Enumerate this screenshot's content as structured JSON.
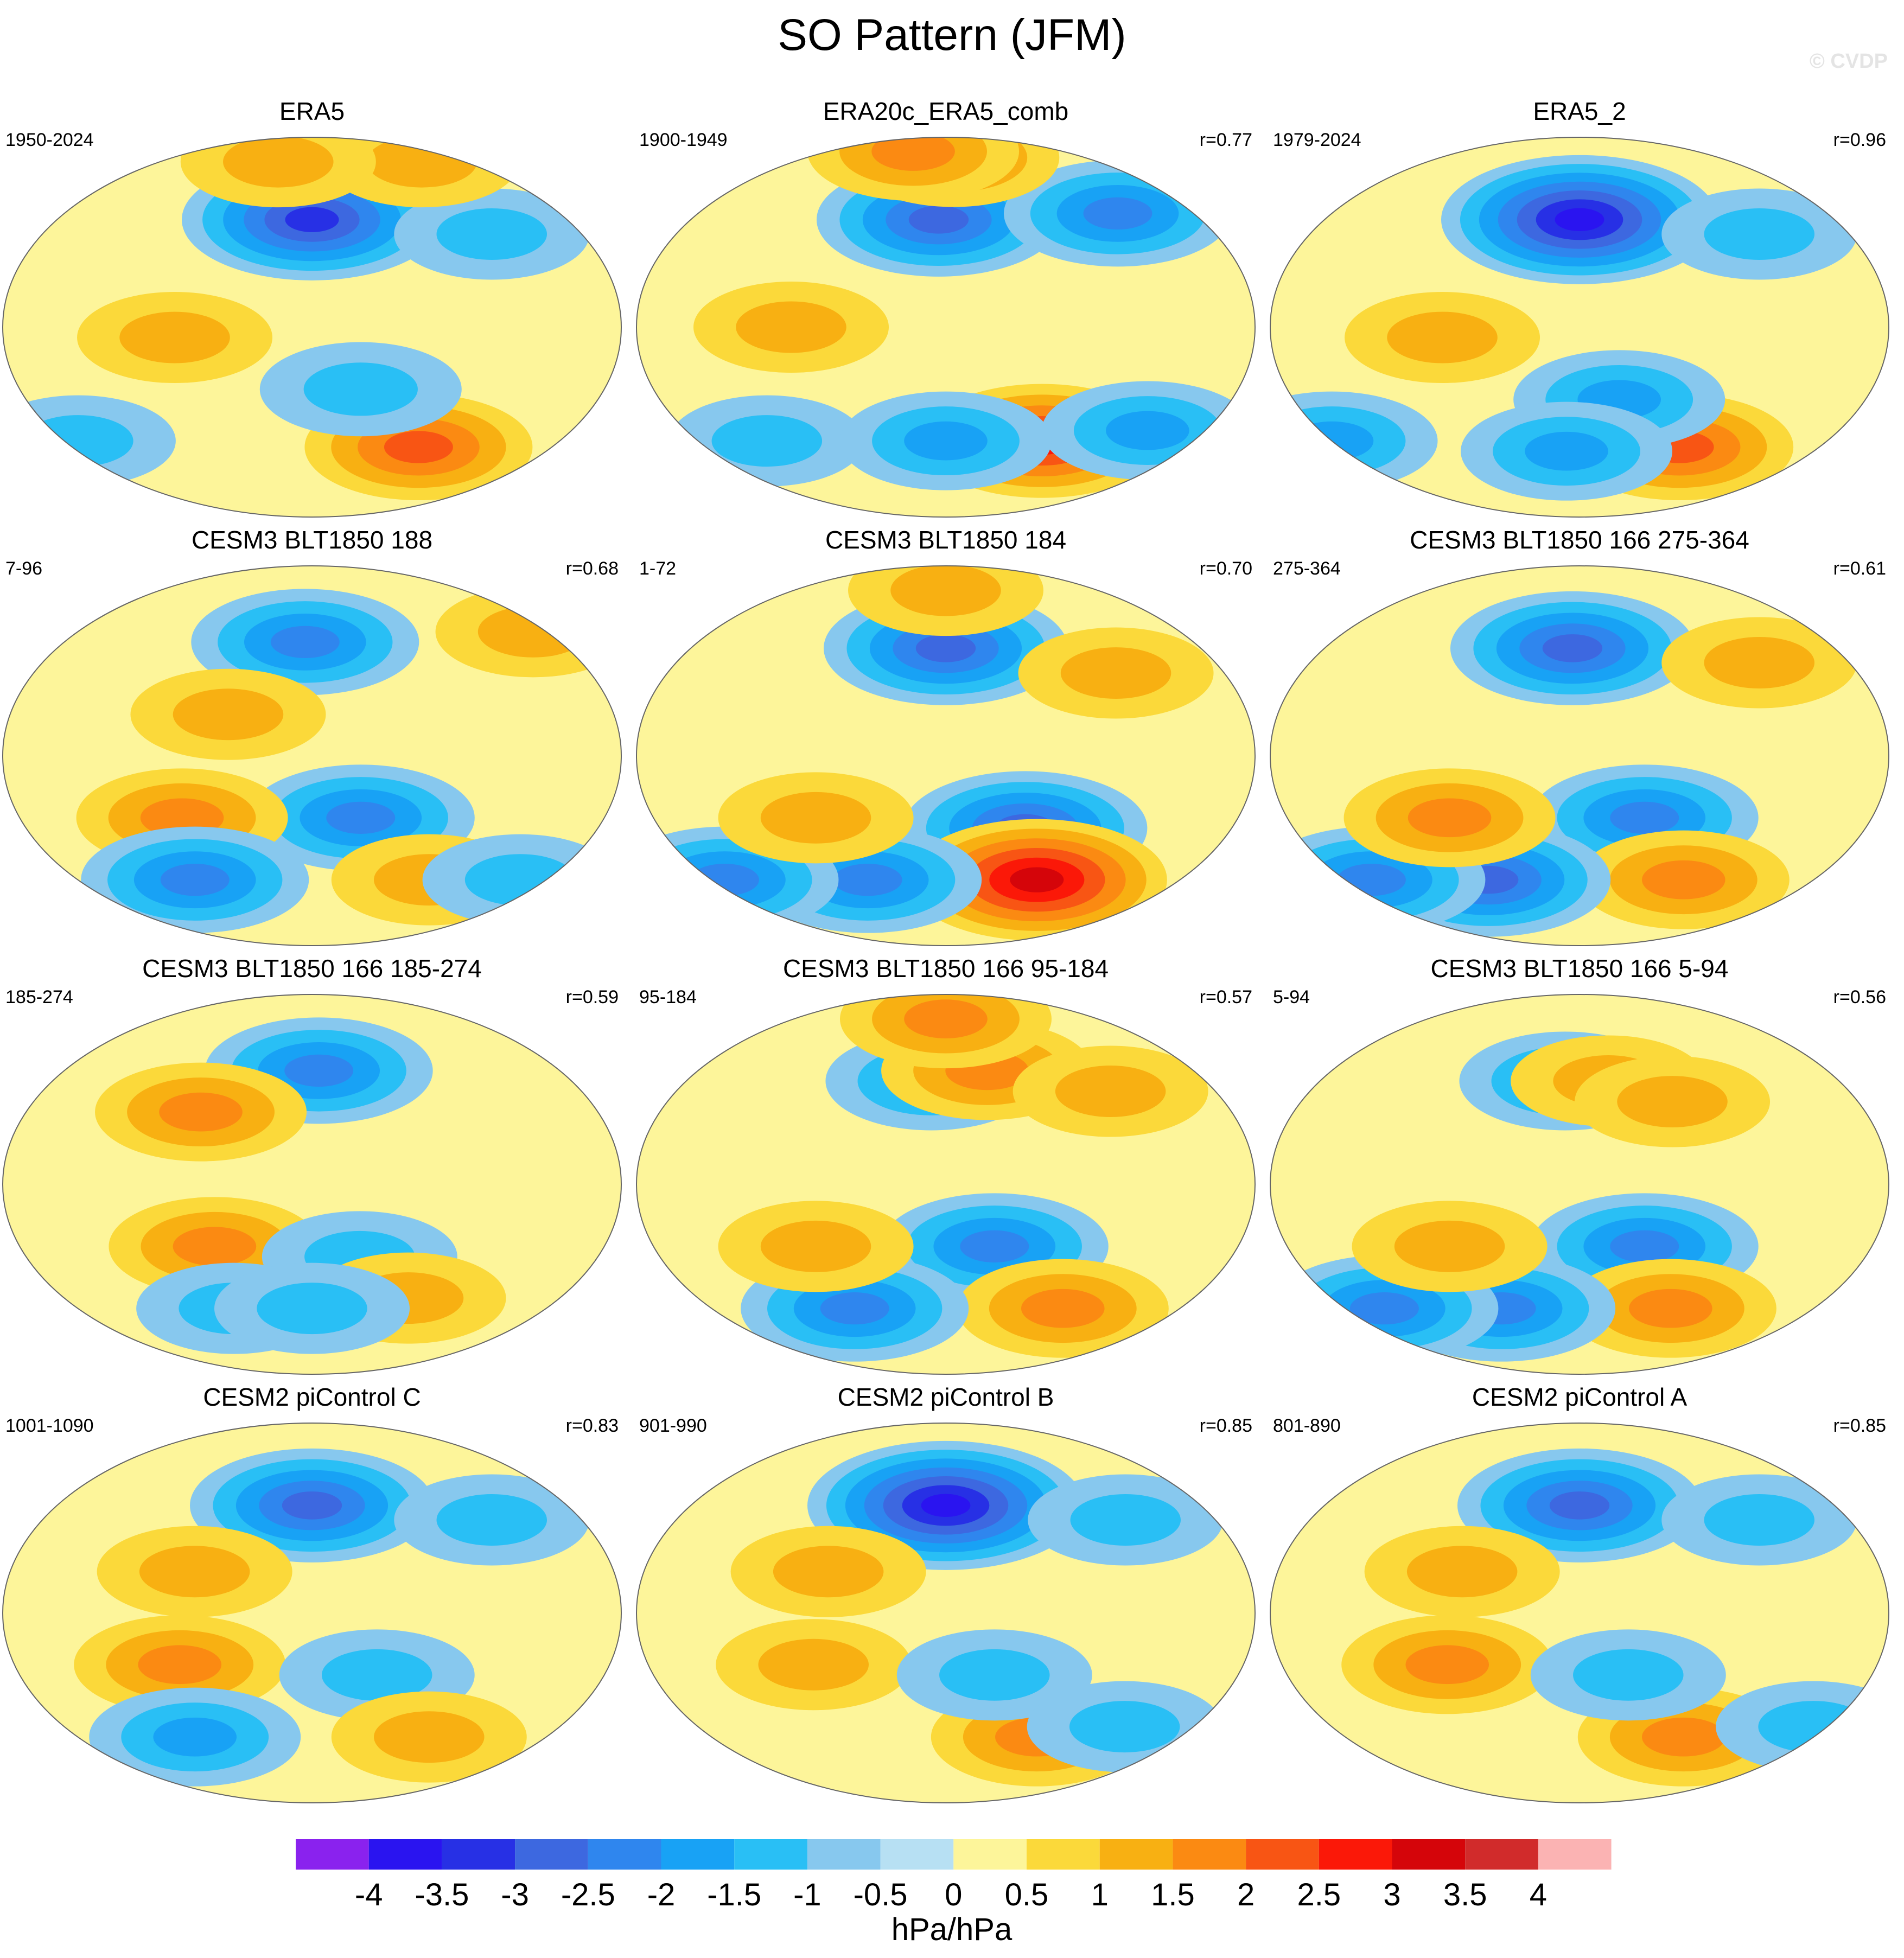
{
  "figure": {
    "title": "SO Pattern (JFM)",
    "watermark": "© CVDP",
    "colorbar": {
      "units": "hPa/hPa",
      "labels": [
        "-4",
        "-3.5",
        "-3",
        "-2.5",
        "-2",
        "-1.5",
        "-1",
        "-0.5",
        "0",
        "0.5",
        "1",
        "1.5",
        "2",
        "2.5",
        "3",
        "3.5",
        "4"
      ],
      "levels": [
        -4,
        -3.5,
        -3,
        -2.5,
        -2,
        -1.5,
        -1,
        -0.5,
        0,
        0.5,
        1,
        1.5,
        2,
        2.5,
        3,
        3.5,
        4
      ],
      "colors": [
        "#8a22ee",
        "#2a14f0",
        "#2730e5",
        "#3d68e0",
        "#2f86ee",
        "#18a2f5",
        "#29bff5",
        "#87c8ee",
        "#b7e0f3",
        "#fdf59a",
        "#fbd93a",
        "#f8b012",
        "#fb8a12",
        "#f85514",
        "#fb1808",
        "#d5050a",
        "#d12b2b",
        "#fbb3b3"
      ]
    }
  },
  "chart_data": [
    {
      "type": "map",
      "panel": "ERA5",
      "period": "1950-2024",
      "r": "",
      "features": [
        {
          "lon": -150,
          "lat": 52,
          "value": -3.0
        },
        {
          "lon": -70,
          "lat": -58,
          "value": 2.0
        },
        {
          "lon": 130,
          "lat": -5,
          "value": 1.0
        },
        {
          "lon": -120,
          "lat": -30,
          "value": -1.2
        },
        {
          "lon": -30,
          "lat": 45,
          "value": -1.0
        },
        {
          "lon": 40,
          "lat": -55,
          "value": -1.0
        },
        {
          "lon": -20,
          "lat": 80,
          "value": 1.0
        },
        {
          "lon": 170,
          "lat": 80,
          "value": 1.0
        }
      ]
    },
    {
      "type": "map",
      "panel": "ERA20c_ERA5_comb",
      "period": "1900-1949",
      "r": "r=0.77",
      "features": [
        {
          "lon": -155,
          "lat": 52,
          "value": -2.5
        },
        {
          "lon": -80,
          "lat": -55,
          "value": 2.5
        },
        {
          "lon": 120,
          "lat": 0,
          "value": 1.0
        },
        {
          "lon": -25,
          "lat": 55,
          "value": -2.0
        },
        {
          "lon": -10,
          "lat": -50,
          "value": -1.5
        },
        {
          "lon": 80,
          "lat": -55,
          "value": -1.0
        },
        {
          "lon": -150,
          "lat": -55,
          "value": -1.5
        },
        {
          "lon": -140,
          "lat": 82,
          "value": 1.5
        },
        {
          "lon": 160,
          "lat": 85,
          "value": 1.5
        }
      ]
    },
    {
      "type": "map",
      "panel": "ERA5_2",
      "period": "1979-2024",
      "r": "r=0.96",
      "features": [
        {
          "lon": -150,
          "lat": 52,
          "value": -3.5
        },
        {
          "lon": -75,
          "lat": -58,
          "value": 2.0
        },
        {
          "lon": 130,
          "lat": -5,
          "value": 1.0
        },
        {
          "lon": -125,
          "lat": -35,
          "value": -1.5
        },
        {
          "lon": -30,
          "lat": 45,
          "value": -1.0
        },
        {
          "lon": 30,
          "lat": -55,
          "value": -1.5
        },
        {
          "lon": -160,
          "lat": -60,
          "value": -1.5
        }
      ]
    },
    {
      "type": "map",
      "panel": "CESM3 BLT1850 188",
      "period": "7-96",
      "r": "r=0.68",
      "features": [
        {
          "lon": -155,
          "lat": 55,
          "value": -2.0
        },
        {
          "lon": -120,
          "lat": -30,
          "value": -2.0
        },
        {
          "lon": 130,
          "lat": -30,
          "value": 1.5
        },
        {
          "lon": 120,
          "lat": -60,
          "value": -2.0
        },
        {
          "lon": -60,
          "lat": -60,
          "value": 1.0
        },
        {
          "lon": 10,
          "lat": -60,
          "value": -1.0
        },
        {
          "lon": 20,
          "lat": 60,
          "value": 1.0
        },
        {
          "lon": 160,
          "lat": 20,
          "value": 1.0
        }
      ]
    },
    {
      "type": "map",
      "panel": "CESM3 BLT1850 184",
      "period": "1-72",
      "r": "r=0.70",
      "features": [
        {
          "lon": -150,
          "lat": 52,
          "value": -2.5
        },
        {
          "lon": -100,
          "lat": -35,
          "value": -2.5
        },
        {
          "lon": -80,
          "lat": -60,
          "value": 3.0
        },
        {
          "lon": 150,
          "lat": -60,
          "value": -2.0
        },
        {
          "lon": 40,
          "lat": -60,
          "value": -2.0
        },
        {
          "lon": 130,
          "lat": -30,
          "value": 1.0
        },
        {
          "lon": -40,
          "lat": 40,
          "value": 1.0
        },
        {
          "lon": -150,
          "lat": 80,
          "value": 1.0
        }
      ]
    },
    {
      "type": "map",
      "panel": "CESM3 BLT1850 166 275-364",
      "period": "275-364",
      "r": "r=0.61",
      "features": [
        {
          "lon": -155,
          "lat": 52,
          "value": -2.5
        },
        {
          "lon": -110,
          "lat": -30,
          "value": -2.0
        },
        {
          "lon": -70,
          "lat": -60,
          "value": 1.5
        },
        {
          "lon": 140,
          "lat": -60,
          "value": -2.5
        },
        {
          "lon": 50,
          "lat": -60,
          "value": -2.0
        },
        {
          "lon": 130,
          "lat": -30,
          "value": 1.5
        },
        {
          "lon": -30,
          "lat": 45,
          "value": 1.0
        }
      ]
    },
    {
      "type": "map",
      "panel": "CESM3 BLT1850 166 185-274",
      "period": "185-274",
      "r": "r=0.59",
      "features": [
        {
          "lon": -145,
          "lat": 55,
          "value": -2.0
        },
        {
          "lon": 150,
          "lat": -30,
          "value": 1.5
        },
        {
          "lon": 140,
          "lat": 35,
          "value": 1.5
        },
        {
          "lon": -120,
          "lat": -35,
          "value": -1.0
        },
        {
          "lon": -80,
          "lat": -55,
          "value": 1.0
        },
        {
          "lon": 150,
          "lat": -60,
          "value": -1.0
        },
        {
          "lon": -150,
          "lat": -60,
          "value": -1.0
        }
      ]
    },
    {
      "type": "map",
      "panel": "CESM3 BLT1850 166 95-184",
      "period": "95-184",
      "r": "r=0.57",
      "features": [
        {
          "lon": -160,
          "lat": 50,
          "value": -1.5
        },
        {
          "lon": -120,
          "lat": 55,
          "value": 1.5
        },
        {
          "lon": -120,
          "lat": -30,
          "value": -2.0
        },
        {
          "lon": -60,
          "lat": -60,
          "value": 1.5
        },
        {
          "lon": 140,
          "lat": -60,
          "value": -2.0
        },
        {
          "lon": 130,
          "lat": -30,
          "value": 1.0
        },
        {
          "lon": -150,
          "lat": 80,
          "value": 1.5
        },
        {
          "lon": -40,
          "lat": 45,
          "value": 1.0
        }
      ]
    },
    {
      "type": "map",
      "panel": "CESM3 BLT1850 166 5-94",
      "period": "5-94",
      "r": "r=0.56",
      "features": [
        {
          "lon": -160,
          "lat": 50,
          "value": -1.5
        },
        {
          "lon": -130,
          "lat": 50,
          "value": 1.0
        },
        {
          "lon": -110,
          "lat": -30,
          "value": -2.0
        },
        {
          "lon": -80,
          "lat": -60,
          "value": 1.5
        },
        {
          "lon": 150,
          "lat": -60,
          "value": -2.0
        },
        {
          "lon": 60,
          "lat": -60,
          "value": -2.0
        },
        {
          "lon": 130,
          "lat": -30,
          "value": 1.0
        },
        {
          "lon": -90,
          "lat": 40,
          "value": 1.0
        }
      ]
    },
    {
      "type": "map",
      "panel": "CESM2 piControl C",
      "period": "1001-1090",
      "r": "r=0.83",
      "features": [
        {
          "lon": -150,
          "lat": 52,
          "value": -2.5
        },
        {
          "lon": 130,
          "lat": -25,
          "value": 1.5
        },
        {
          "lon": -110,
          "lat": -30,
          "value": -1.0
        },
        {
          "lon": -60,
          "lat": -60,
          "value": 1.0
        },
        {
          "lon": 120,
          "lat": -60,
          "value": -1.5
        },
        {
          "lon": -30,
          "lat": 45,
          "value": -1.0
        },
        {
          "lon": 140,
          "lat": 20,
          "value": 1.0
        }
      ]
    },
    {
      "type": "map",
      "panel": "CESM2 piControl B",
      "period": "901-990",
      "r": "r=0.85",
      "features": [
        {
          "lon": -150,
          "lat": 52,
          "value": -3.5
        },
        {
          "lon": -80,
          "lat": -60,
          "value": 1.5
        },
        {
          "lon": 130,
          "lat": -25,
          "value": 1.0
        },
        {
          "lon": -120,
          "lat": -30,
          "value": -1.0
        },
        {
          "lon": -30,
          "lat": 45,
          "value": -1.0
        },
        {
          "lon": 140,
          "lat": 20,
          "value": 1.0
        },
        {
          "lon": -20,
          "lat": -55,
          "value": -1.0
        }
      ]
    },
    {
      "type": "map",
      "panel": "CESM2 piControl A",
      "period": "801-890",
      "r": "r=0.85",
      "features": [
        {
          "lon": -150,
          "lat": 52,
          "value": -2.5
        },
        {
          "lon": -70,
          "lat": -60,
          "value": 1.5
        },
        {
          "lon": 130,
          "lat": -25,
          "value": 1.5
        },
        {
          "lon": -120,
          "lat": -30,
          "value": -1.0
        },
        {
          "lon": -30,
          "lat": 45,
          "value": -1.0
        },
        {
          "lon": 140,
          "lat": 20,
          "value": 1.0
        },
        {
          "lon": 20,
          "lat": -55,
          "value": -1.0
        }
      ]
    }
  ]
}
